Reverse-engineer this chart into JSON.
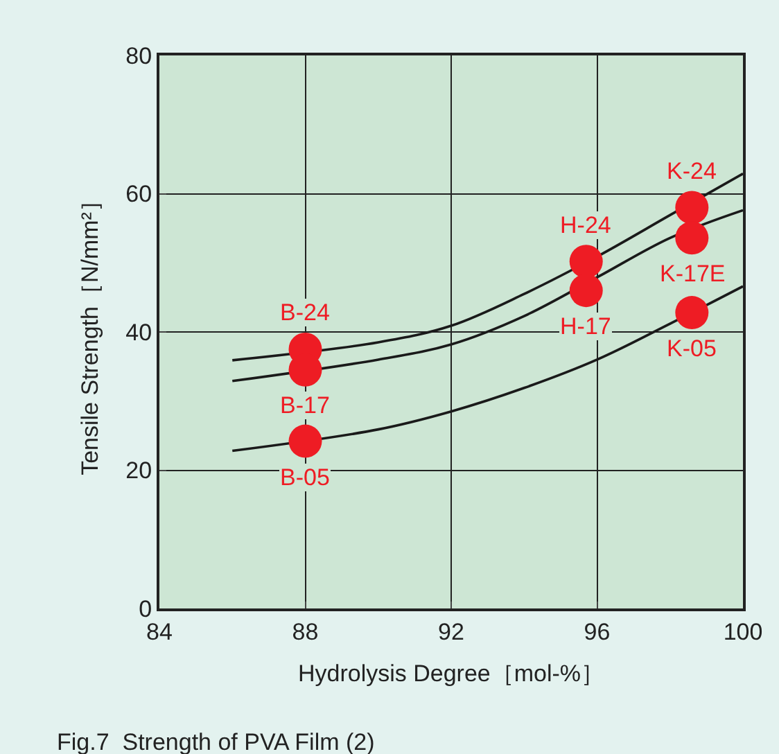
{
  "chart_data": {
    "type": "line",
    "title": "Fig.7  Strength of PVA Film (2)",
    "xlabel": "Hydrolysis Degree［mol-%］",
    "ylabel": "Tensile Strength［N/mm²］",
    "xlim": [
      84,
      100
    ],
    "xticks": [
      84,
      88,
      92,
      96,
      100
    ],
    "ylim": [
      0,
      80
    ],
    "yticks": [
      0,
      20,
      40,
      60,
      80
    ],
    "grid": true,
    "series": [
      {
        "color": "#1a1a1a",
        "x": [
          86,
          90,
          92,
          94,
          96,
          98,
          100
        ],
        "values": [
          35.9,
          38.5,
          40.9,
          45.5,
          50.9,
          56.9,
          62.9
        ]
      },
      {
        "color": "#1a1a1a",
        "x": [
          86,
          90,
          92,
          94,
          96,
          98,
          100
        ],
        "values": [
          32.9,
          36.0,
          38.2,
          42.3,
          47.9,
          53.6,
          57.6
        ]
      },
      {
        "color": "#1a1a1a",
        "x": [
          86,
          90,
          92,
          94,
          96,
          98,
          100
        ],
        "values": [
          22.8,
          25.9,
          28.5,
          31.9,
          36.0,
          41.2,
          46.6
        ]
      },
      {
        "type": "scatter",
        "color": "#ee1c24",
        "marker": "circle",
        "x": [
          88,
          88,
          88,
          95.7,
          95.7,
          98.6,
          98.6,
          98.6
        ],
        "values": [
          37.5,
          34.5,
          24.2,
          50.2,
          46.0,
          58.0,
          53.6,
          42.8
        ]
      }
    ],
    "annotations": [
      {
        "text": "B-24",
        "x": 88,
        "y": 37.5
      },
      {
        "text": "B-17",
        "x": 88,
        "y": 34.5
      },
      {
        "text": "B-05",
        "x": 88,
        "y": 24.2
      },
      {
        "text": "H-24",
        "x": 95.7,
        "y": 50.2
      },
      {
        "text": "H-17",
        "x": 95.7,
        "y": 46.0
      },
      {
        "text": "K-24",
        "x": 98.6,
        "y": 58.0
      },
      {
        "text": "K-17E",
        "x": 98.6,
        "y": 53.6
      },
      {
        "text": "K-05",
        "x": 98.6,
        "y": 42.8
      }
    ]
  }
}
